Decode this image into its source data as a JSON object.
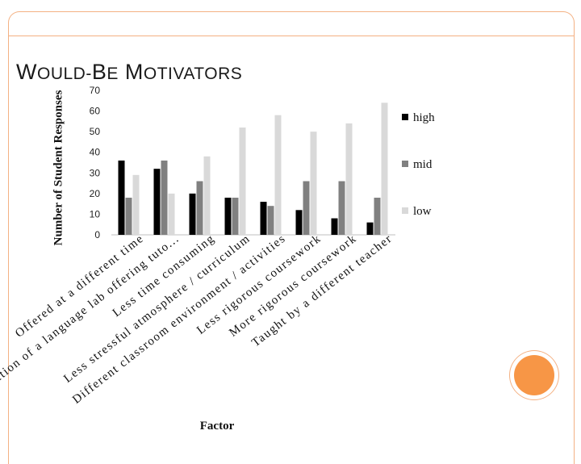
{
  "slide": {
    "title": "Would-be Motivators"
  },
  "chart_data": {
    "type": "bar",
    "title": "",
    "xlabel": "Factor",
    "ylabel": "Number of Student Responses",
    "ylim": [
      0,
      70
    ],
    "yticks": [
      0,
      10,
      20,
      30,
      40,
      50,
      60,
      70
    ],
    "categories": [
      "Offered at a different time",
      "the addition of a language lab offering tuto...",
      "Less time consuming",
      "Less stressful atmosphere / curriculum",
      "Different classroom environment / activities",
      "Less rigorous coursework",
      "More rigorous coursework",
      "Taught by a different teacher"
    ],
    "series": [
      {
        "name": "high",
        "color": "#000000",
        "values": [
          36,
          32,
          20,
          18,
          16,
          12,
          8,
          6
        ]
      },
      {
        "name": "mid",
        "color": "#808080",
        "values": [
          18,
          36,
          26,
          18,
          14,
          26,
          26,
          18
        ]
      },
      {
        "name": "low",
        "color": "#d9d9d9",
        "values": [
          29,
          20,
          38,
          52,
          58,
          50,
          54,
          64
        ]
      }
    ],
    "legend_position": "right",
    "grid": false
  },
  "theme": {
    "accent": "#f79646",
    "border": "#f4b183"
  }
}
